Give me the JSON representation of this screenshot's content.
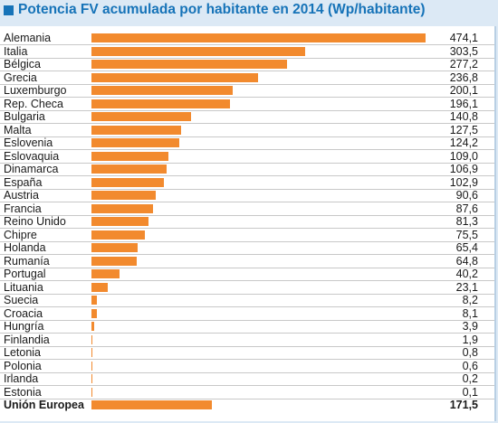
{
  "chart_data": {
    "type": "bar",
    "orientation": "horizontal",
    "title": "Potencia FV acumulada por habitante en 2014 (Wp/habitante)",
    "categories": [
      "Alemania",
      "Italia",
      "Bélgica",
      "Grecia",
      "Luxemburgo",
      "Rep. Checa",
      "Bulgaria",
      "Malta",
      "Eslovenia",
      "Eslovaquia",
      "Dinamarca",
      "España",
      "Austria",
      "Francia",
      "Reino Unido",
      "Chipre",
      "Holanda",
      "Rumanía",
      "Portugal",
      "Lituania",
      "Suecia",
      "Croacia",
      "Hungría",
      "Finlandia",
      "Letonia",
      "Polonia",
      "Irlanda",
      "Estonia",
      "Unión Europea"
    ],
    "values": [
      474.1,
      303.5,
      277.2,
      236.8,
      200.1,
      196.1,
      140.8,
      127.5,
      124.2,
      109.0,
      106.9,
      102.9,
      90.6,
      87.6,
      81.3,
      75.5,
      65.4,
      64.8,
      40.2,
      23.1,
      8.2,
      8.1,
      3.9,
      1.9,
      0.8,
      0.6,
      0.2,
      0.1,
      171.5
    ],
    "value_labels": [
      "474,1",
      "303,5",
      "277,2",
      "236,8",
      "200,1",
      "196,1",
      "140,8",
      "127,5",
      "124,2",
      "109,0",
      "106,9",
      "102,9",
      "90,6",
      "87,6",
      "81,3",
      "75,5",
      "65,4",
      "64,8",
      "40,2",
      "23,1",
      "8,2",
      "8,1",
      "3,9",
      "1,9",
      "0,8",
      "0,6",
      "0,2",
      "0,1",
      "171,5"
    ],
    "xlim": [
      0,
      474.1
    ],
    "grid": false,
    "legend": "none",
    "colors": {
      "bar": "#f28a2e",
      "title": "#1673b8",
      "background": "#dce9f5"
    }
  }
}
